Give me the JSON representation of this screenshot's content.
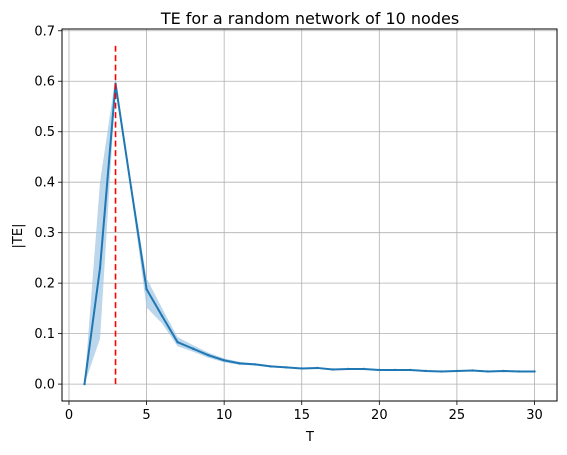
{
  "chart_data": {
    "type": "line",
    "title": "TE for a random network of 10 nodes",
    "xlabel": "T",
    "ylabel": "|TE|",
    "xlim": [
      -0.45,
      31.45
    ],
    "ylim": [
      -0.0335,
      0.7035
    ],
    "xticks": [
      0,
      5,
      10,
      15,
      20,
      25,
      30
    ],
    "yticks": [
      0.0,
      0.1,
      0.2,
      0.3,
      0.4,
      0.5,
      0.6,
      0.7
    ],
    "ytick_labels": [
      "0.0",
      "0.1",
      "0.2",
      "0.3",
      "0.4",
      "0.5",
      "0.6",
      "0.7"
    ],
    "grid": true,
    "series": [
      {
        "color": "#1f77b4",
        "x": [
          1,
          2,
          3,
          4,
          5,
          6,
          7,
          8,
          9,
          10,
          11,
          12,
          13,
          14,
          15,
          16,
          17,
          18,
          19,
          20,
          21,
          22,
          23,
          24,
          25,
          26,
          27,
          28,
          29,
          30
        ],
        "y": [
          0.0,
          0.23,
          0.595,
          0.39,
          0.188,
          0.135,
          0.083,
          0.07,
          0.057,
          0.047,
          0.041,
          0.039,
          0.035,
          0.033,
          0.031,
          0.032,
          0.029,
          0.03,
          0.03,
          0.028,
          0.028,
          0.028,
          0.026,
          0.025,
          0.026,
          0.027,
          0.025,
          0.026,
          0.025,
          0.025
        ],
        "band_upper": [
          0.0,
          0.4,
          0.608,
          0.4,
          0.21,
          0.15,
          0.093,
          0.077,
          0.062,
          0.051,
          0.044,
          0.041,
          0.037,
          0.034,
          0.032,
          0.033,
          0.03,
          0.031,
          0.031,
          0.029,
          0.029,
          0.029,
          0.027,
          0.026,
          0.027,
          0.028,
          0.026,
          0.027,
          0.026,
          0.026
        ],
        "band_lower": [
          0.0,
          0.09,
          0.585,
          0.38,
          0.152,
          0.12,
          0.075,
          0.064,
          0.052,
          0.043,
          0.038,
          0.037,
          0.033,
          0.032,
          0.03,
          0.031,
          0.028,
          0.029,
          0.029,
          0.027,
          0.027,
          0.027,
          0.025,
          0.024,
          0.025,
          0.026,
          0.024,
          0.025,
          0.024,
          0.024
        ],
        "band_color": "#a6c8e4"
      }
    ],
    "vline": {
      "x": 3,
      "y_range": [
        0.0,
        0.67
      ],
      "color": "#ff0000",
      "style": "dashed"
    }
  }
}
